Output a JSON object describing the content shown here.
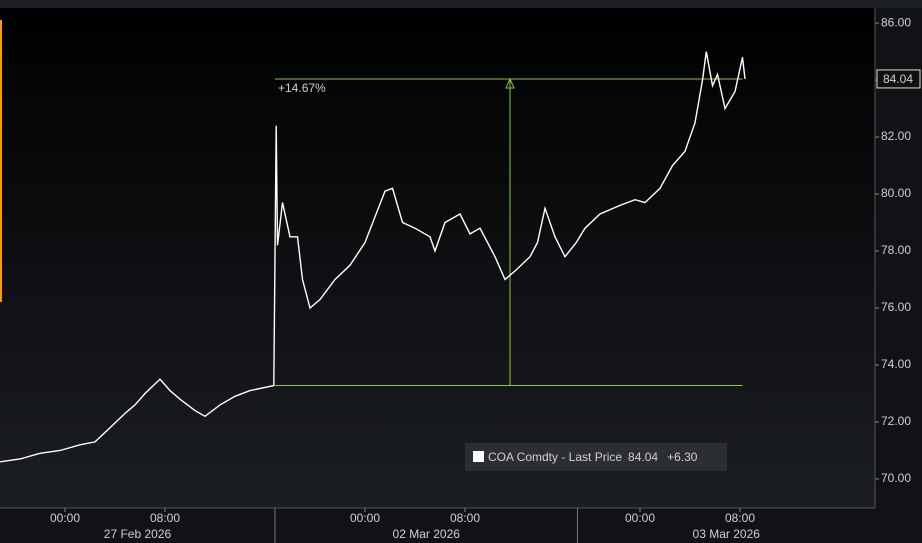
{
  "chart_data": {
    "type": "line",
    "x": [
      -5.2,
      -3.6,
      -2,
      -0.4,
      1.2,
      2.4,
      3.6,
      4.8,
      5.6,
      6.4,
      7.6,
      8.4,
      9.2,
      10.4,
      11.2,
      12.4,
      13.6,
      14.8,
      16.7,
      16.9,
      17.0,
      17.4,
      18,
      18.6,
      19,
      19.6,
      20.4,
      21.6,
      22.8,
      24,
      24.8,
      25.6,
      26.2,
      27,
      28,
      29.2,
      29.6,
      30.4,
      31.6,
      32.4,
      33.2,
      34.4,
      35.2,
      36,
      37.2,
      37.8,
      38.4,
      39.2,
      40,
      40.9,
      41.6,
      42.8,
      44.4,
      45.6,
      46.4,
      47.6,
      48.6,
      49.6,
      50.4,
      51,
      51.3,
      51.8,
      52.2,
      52.8,
      53.6,
      54.2,
      54.4
    ],
    "series": [
      {
        "name": "COA Comdty - Last Price",
        "color": "#ffffff",
        "values": [
          70.6,
          70.7,
          70.9,
          71.0,
          71.2,
          71.3,
          71.8,
          72.3,
          72.6,
          73.0,
          73.5,
          73.1,
          72.8,
          72.4,
          72.2,
          72.6,
          72.9,
          73.1,
          73.28,
          82.4,
          78.2,
          79.7,
          78.5,
          78.5,
          77,
          76,
          76.3,
          77,
          77.5,
          78.3,
          79.2,
          80.1,
          80.2,
          79,
          78.8,
          78.5,
          78,
          79,
          79.3,
          78.6,
          78.8,
          77.8,
          77,
          77.3,
          77.8,
          78.3,
          79.5,
          78.5,
          77.8,
          78.3,
          78.8,
          79.3,
          79.6,
          79.8,
          79.7,
          80.2,
          81,
          81.5,
          82.5,
          84,
          85,
          83.8,
          84.2,
          83,
          83.6,
          84.8,
          84.04
        ]
      }
    ],
    "change": "+6.30",
    "xlim": [
      -5.2,
      64.8
    ],
    "xticks": [
      {
        "value": 0,
        "label": "00:00"
      },
      {
        "value": 8,
        "label": "08:00"
      },
      {
        "value": 24,
        "label": "00:00"
      },
      {
        "value": 32,
        "label": "08:00"
      },
      {
        "value": 46,
        "label": "00:00"
      },
      {
        "value": 54,
        "label": "08:00"
      }
    ],
    "x_groups": [
      {
        "label": "27 Feb 2026",
        "range": [
          -5.2,
          16.8
        ]
      },
      {
        "label": "02 Mar 2026",
        "range": [
          16.8,
          41
        ]
      },
      {
        "label": "03 Mar 2026",
        "range": [
          41,
          64.8
        ]
      }
    ],
    "ylim": [
      68.98,
      86.53
    ],
    "yticks": [
      {
        "value": 70,
        "label": "70.00"
      },
      {
        "value": 72,
        "label": "72.00"
      },
      {
        "value": 74,
        "label": "74.00"
      },
      {
        "value": 76,
        "label": "76.00"
      },
      {
        "value": 78,
        "label": "78.00"
      },
      {
        "value": 80,
        "label": "80.00"
      },
      {
        "value": 82,
        "label": "82.00"
      },
      {
        "value": 84,
        "label": "84.00"
      },
      {
        "value": 86,
        "label": "86.00"
      }
    ],
    "annotation": {
      "label": "+14.67%",
      "from": 73.28,
      "to": 84.04,
      "x": 35.6,
      "xrange": [
        16.8,
        54.2
      ],
      "color": "#8dc63f"
    },
    "legend": "bottom-right"
  }
}
